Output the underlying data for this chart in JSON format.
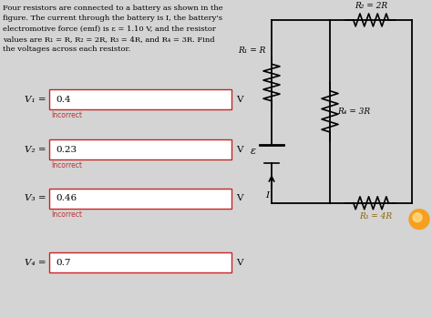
{
  "title_text": "Four resistors are connected to a battery as shown in the\nfigure. The current through the battery is I, the battery's\nelectromotive force (emf) is ε = 1.10 V, and the resistor\nvalues are R₁ = R, R₂ = 2R, R₃ = 4R, and R₄ = 3R. Find\nthe voltages across each resistor.",
  "bg_color": "#d4d4d4",
  "box_border_color": "#cc2222",
  "box_fill_color": "#ffffff",
  "input_values": [
    "0.4",
    "0.23",
    "0.46",
    "0.7"
  ],
  "labels_left": [
    "V₁ =",
    "V₂ =",
    "V₃ =",
    "V₄ ="
  ],
  "incorrect_label": "Incorrect",
  "incorrect_color": "#bb3333",
  "unit_label": "V",
  "r1_label": "R₁ = R",
  "r2_label": "R₂ = 2R",
  "r3_label": "R₃ = 4R",
  "r4_label": "R₄ = 3R",
  "emf_label": "ε",
  "current_label": "I",
  "orange_circle_color": "#f5a020"
}
